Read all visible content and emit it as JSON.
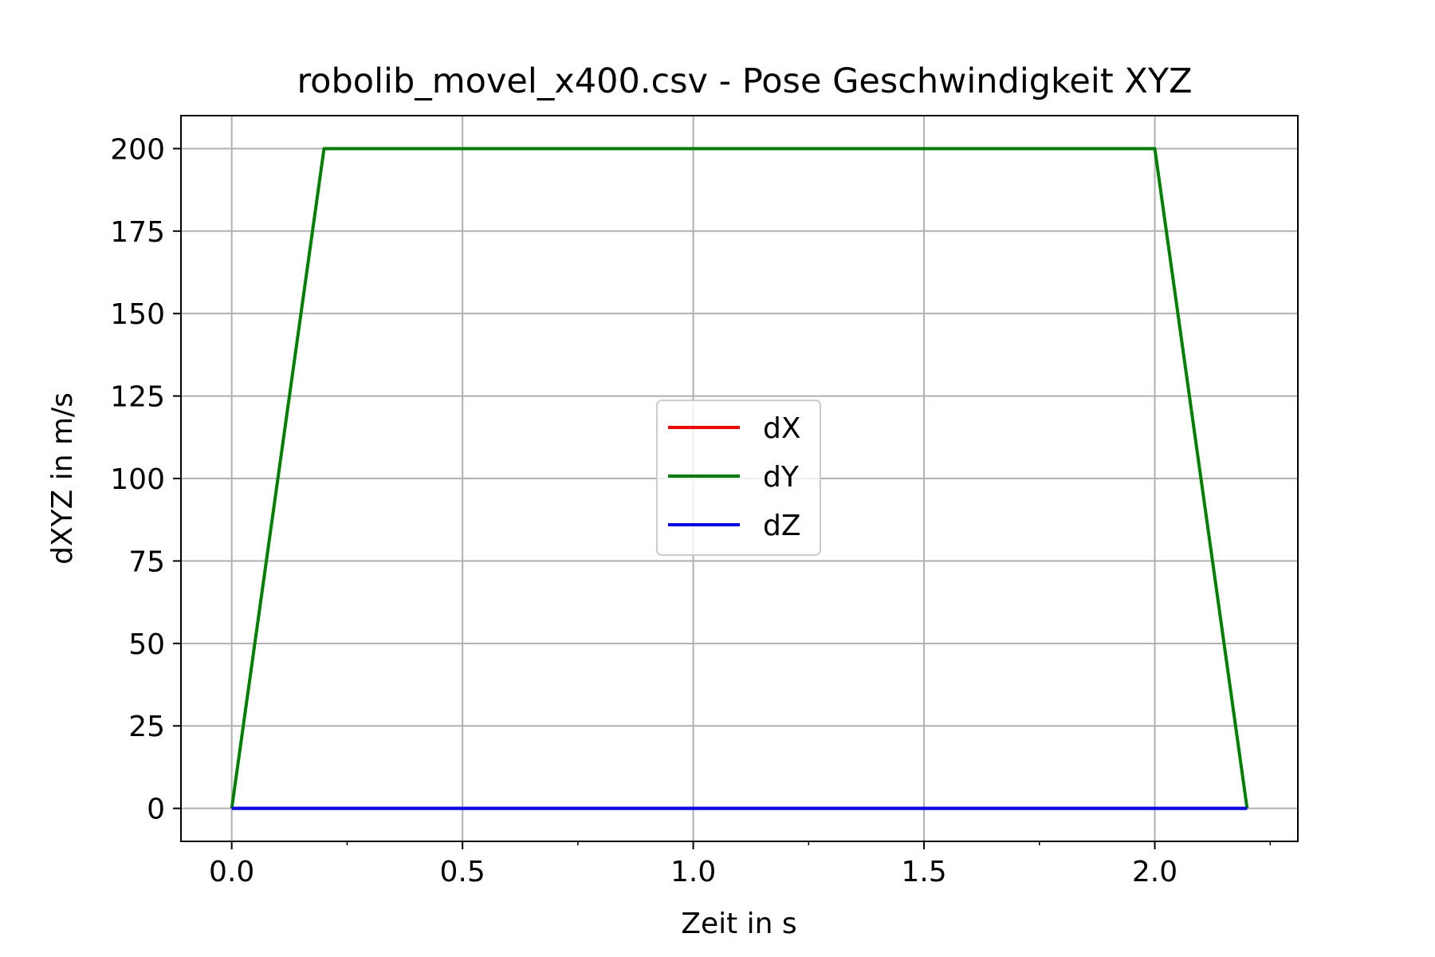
{
  "chart_data": {
    "type": "line",
    "title": "robolib_movel_x400.csv - Pose Geschwindigkeit XYZ",
    "xlabel": "Zeit in s",
    "ylabel": "dXYZ in m/s",
    "xlim": [
      -0.11,
      2.31
    ],
    "ylim": [
      -10,
      210
    ],
    "xticks": [
      0.0,
      0.5,
      1.0,
      1.5,
      2.0
    ],
    "xtick_labels": [
      "0.0",
      "0.5",
      "1.0",
      "1.5",
      "2.0"
    ],
    "xminor_ticks": [
      0.25,
      0.75,
      1.25,
      1.75,
      2.25
    ],
    "yticks": [
      0,
      25,
      50,
      75,
      100,
      125,
      150,
      175,
      200
    ],
    "ytick_labels": [
      "0",
      "25",
      "50",
      "75",
      "100",
      "125",
      "150",
      "175",
      "200"
    ],
    "grid": true,
    "legend_position": "center",
    "series": [
      {
        "name": "dX",
        "color": "#ff0000",
        "x": [
          0.0,
          0.2,
          2.0,
          2.2
        ],
        "y": [
          0,
          0,
          0,
          0
        ]
      },
      {
        "name": "dY",
        "color": "#008000",
        "x": [
          0.0,
          0.2,
          2.0,
          2.2
        ],
        "y": [
          0,
          200,
          200,
          0
        ]
      },
      {
        "name": "dZ",
        "color": "#0000ff",
        "x": [
          0.0,
          0.2,
          2.0,
          2.2
        ],
        "y": [
          0,
          0,
          0,
          0
        ]
      }
    ]
  }
}
